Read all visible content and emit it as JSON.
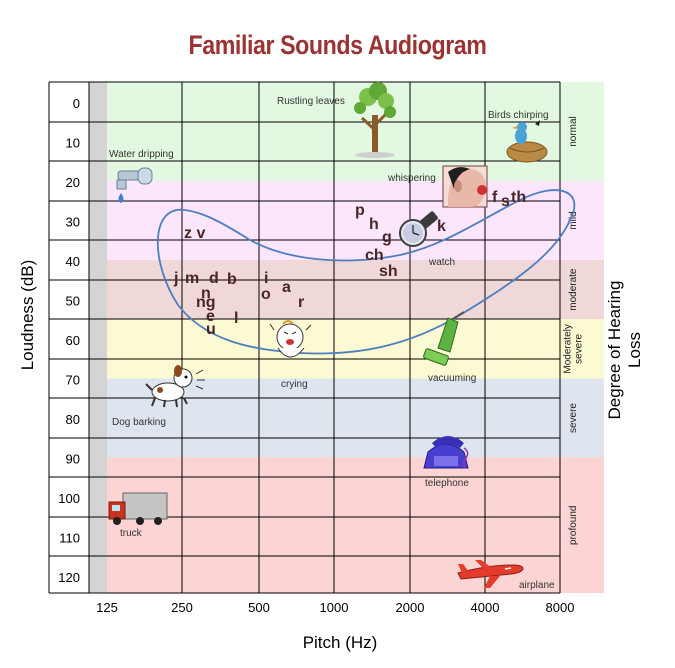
{
  "title": "Familiar Sounds Audiogram",
  "y_axis_label": "Loudness (dB)",
  "x_axis_label": "Pitch (Hz)",
  "y2_axis_label": "Degree of Hearing Loss",
  "x_ticks": [
    "125",
    "250",
    "500",
    "1000",
    "2000",
    "4000",
    "8000"
  ],
  "y_ticks": [
    "0",
    "10",
    "20",
    "30",
    "40",
    "50",
    "60",
    "70",
    "80",
    "90",
    "100",
    "110",
    "120"
  ],
  "bands": [
    {
      "label": "normal",
      "from_db": -5,
      "to_db": 20,
      "color": "#e3f8e0"
    },
    {
      "label": "mild",
      "from_db": 20,
      "to_db": 40,
      "color": "#fbe6fb"
    },
    {
      "label": "moderate",
      "from_db": 40,
      "to_db": 55,
      "color": "#f0d8d8"
    },
    {
      "label": "Moderately severe",
      "from_db": 55,
      "to_db": 70,
      "color": "#fbfad2"
    },
    {
      "label": "severe",
      "from_db": 70,
      "to_db": 90,
      "color": "#dfe5ef"
    },
    {
      "label": "profound",
      "from_db": 90,
      "to_db": 125,
      "color": "#fcd4d4"
    }
  ],
  "sounds": [
    {
      "label": "Rustling leaves",
      "icon": "tree-icon"
    },
    {
      "label": "Birds chirping",
      "icon": "bird-nest-icon"
    },
    {
      "label": "Water dripping",
      "icon": "faucet-icon"
    },
    {
      "label": "whispering",
      "icon": "whisper-face-icon"
    },
    {
      "label": "watch",
      "icon": "watch-icon"
    },
    {
      "label": "crying",
      "icon": "crying-baby-icon"
    },
    {
      "label": "vacuuming",
      "icon": "vacuum-icon"
    },
    {
      "label": "Dog barking",
      "icon": "dog-icon"
    },
    {
      "label": "telephone",
      "icon": "telephone-icon"
    },
    {
      "label": "truck",
      "icon": "truck-icon"
    },
    {
      "label": "airplane",
      "icon": "airplane-icon"
    }
  ],
  "speech_sounds": [
    "z v",
    "j",
    "m",
    "d",
    "b",
    "n",
    "ng",
    "e",
    "u",
    "l",
    "i",
    "o",
    "a",
    "r",
    "p",
    "h",
    "g",
    "ch",
    "sh",
    "k",
    "f",
    "s",
    "th"
  ],
  "colors": {
    "title": "#9b3333",
    "banana_curve": "#4d7fc1",
    "phoneme": "#4a2626"
  }
}
